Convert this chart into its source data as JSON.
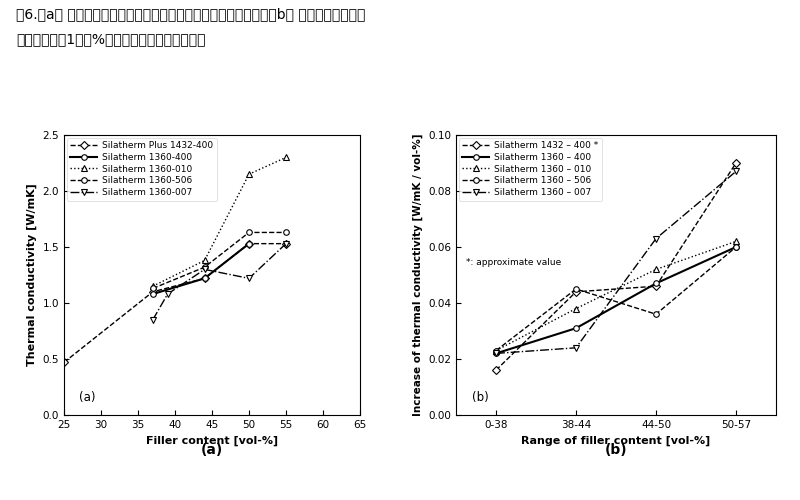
{
  "figure_title_line1": "图6.（a） 测量具有不同填料和填料含量的复合材料的导热系数；（b） 在不同的填料含量",
  "figure_title_line2": "范围内，增加1体积%的填料，从而提高导热性。",
  "subplot_a": {
    "xlabel": "Filler content [vol-%]",
    "ylabel": "Thermal conductivity [W/mK]",
    "sublabel": "(a)",
    "xlim": [
      25,
      65
    ],
    "ylim": [
      0.0,
      2.5
    ],
    "xticks": [
      25,
      30,
      35,
      40,
      45,
      50,
      55,
      60,
      65
    ],
    "yticks": [
      0.0,
      0.5,
      1.0,
      1.5,
      2.0,
      2.5
    ],
    "series": [
      {
        "label": "Silatherm Plus 1432-400",
        "x": [
          25,
          37,
          44,
          50,
          55
        ],
        "y": [
          0.47,
          1.1,
          1.22,
          1.53,
          1.53
        ],
        "linestyle": "--",
        "marker": "D",
        "linewidth": 1.0,
        "markersize": 4
      },
      {
        "label": "Silatherm 1360-400",
        "x": [
          37,
          44,
          50
        ],
        "y": [
          1.08,
          1.22,
          1.53
        ],
        "linestyle": "-",
        "marker": "o",
        "linewidth": 1.5,
        "markersize": 4
      },
      {
        "label": "Silatherm 1360-010",
        "x": [
          37,
          44,
          50,
          55
        ],
        "y": [
          1.15,
          1.38,
          2.15,
          2.3
        ],
        "linestyle": ":",
        "marker": "^",
        "linewidth": 1.0,
        "markersize": 4
      },
      {
        "label": "Silatherm 1360-506",
        "x": [
          37,
          44,
          50,
          55
        ],
        "y": [
          1.13,
          1.32,
          1.63,
          1.63
        ],
        "linestyle": "--",
        "marker": "o",
        "linewidth": 1.0,
        "markersize": 4
      },
      {
        "label": "Silatherm 1360-007",
        "x": [
          37,
          39,
          44,
          50,
          55
        ],
        "y": [
          0.85,
          1.08,
          1.3,
          1.22,
          1.53
        ],
        "linestyle": "-.",
        "marker": "v",
        "linewidth": 1.0,
        "markersize": 4
      }
    ]
  },
  "subplot_b": {
    "xlabel": "Range of filler content [vol-%]",
    "ylabel": "Increase of thermal conductivity [W/mK / vol-%]",
    "sublabel": "(b)",
    "xlim": [
      -0.5,
      3.5
    ],
    "ylim": [
      0.0,
      0.1
    ],
    "xtick_labels": [
      "0-38",
      "38-44",
      "44-50",
      "50-57"
    ],
    "yticks": [
      0.0,
      0.02,
      0.04,
      0.06,
      0.08,
      0.1
    ],
    "note": "*: approximate value",
    "series": [
      {
        "label": "Silatherm 1432 – 400 *",
        "x": [
          0,
          1,
          2,
          3
        ],
        "y": [
          0.016,
          0.044,
          0.046,
          0.09
        ],
        "linestyle": "--",
        "marker": "D",
        "linewidth": 1.0,
        "markersize": 4
      },
      {
        "label": "Silatherm 1360 – 400",
        "x": [
          0,
          1,
          2,
          3
        ],
        "y": [
          0.022,
          0.031,
          0.047,
          0.06
        ],
        "linestyle": "-",
        "marker": "o",
        "linewidth": 1.5,
        "markersize": 4
      },
      {
        "label": "Silatherm 1360 – 010",
        "x": [
          0,
          1,
          2,
          3
        ],
        "y": [
          0.023,
          0.038,
          0.052,
          0.062
        ],
        "linestyle": ":",
        "marker": "^",
        "linewidth": 1.0,
        "markersize": 4
      },
      {
        "label": "Silatherm 1360 – 506",
        "x": [
          0,
          1,
          2,
          3
        ],
        "y": [
          0.023,
          0.045,
          0.036,
          0.06
        ],
        "linestyle": "--",
        "marker": "o",
        "linewidth": 1.0,
        "markersize": 4
      },
      {
        "label": "Silatherm 1360 – 007",
        "x": [
          0,
          1,
          2,
          3
        ],
        "y": [
          0.022,
          0.024,
          0.063,
          0.087
        ],
        "linestyle": "-.",
        "marker": "v",
        "linewidth": 1.0,
        "markersize": 4
      }
    ]
  },
  "bg_color": "#ffffff"
}
